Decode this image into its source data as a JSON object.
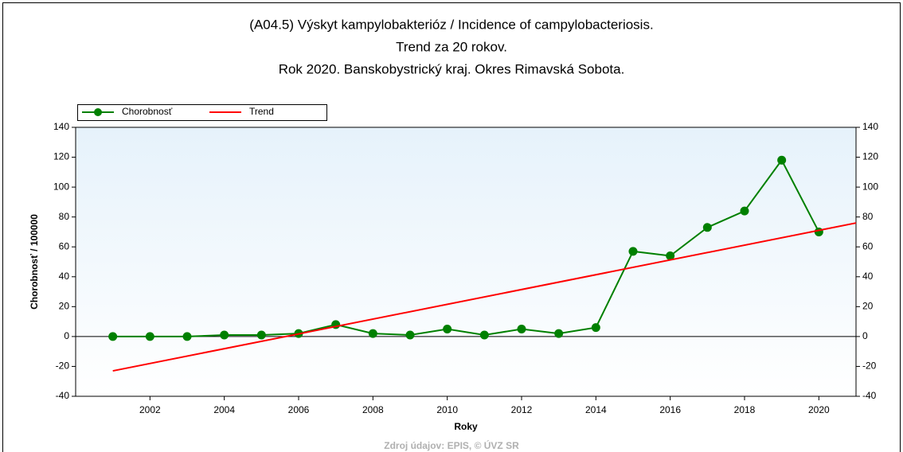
{
  "chart_data": {
    "type": "line",
    "title": [
      "(A04.5) Výskyt kampylobakterióz / Incidence of campylobacteriosis.",
      "Trend za 20 rokov.",
      "Rok 2020. Banskobystrický kraj. Okres Rimavská Sobota."
    ],
    "x_label": "Roky",
    "y_label": "Chorobnosť / 100000",
    "source": "Zdroj údajov: EPIS, © ÚVZ SR",
    "x": [
      2001,
      2002,
      2003,
      2004,
      2005,
      2006,
      2007,
      2008,
      2009,
      2010,
      2011,
      2012,
      2013,
      2014,
      2015,
      2016,
      2017,
      2018,
      2019,
      2020
    ],
    "series": [
      {
        "name": "Chorobnosť",
        "color": "#008000",
        "values": [
          0,
          0,
          0,
          1,
          1,
          2,
          8,
          2,
          1,
          5,
          1,
          5,
          2,
          6,
          57,
          54,
          73,
          84,
          118,
          70
        ]
      },
      {
        "name": "Trend",
        "color": "#ff0000",
        "x": [
          2001,
          2021
        ],
        "values": [
          -23,
          76
        ]
      }
    ],
    "xlim": [
      2000,
      2021
    ],
    "xticks": [
      2002,
      2004,
      2006,
      2008,
      2010,
      2012,
      2014,
      2016,
      2018,
      2020
    ],
    "ylim": [
      -40,
      140
    ],
    "yticks": [
      -40,
      -20,
      0,
      20,
      40,
      60,
      80,
      100,
      120,
      140
    ],
    "legend": "top-left"
  }
}
